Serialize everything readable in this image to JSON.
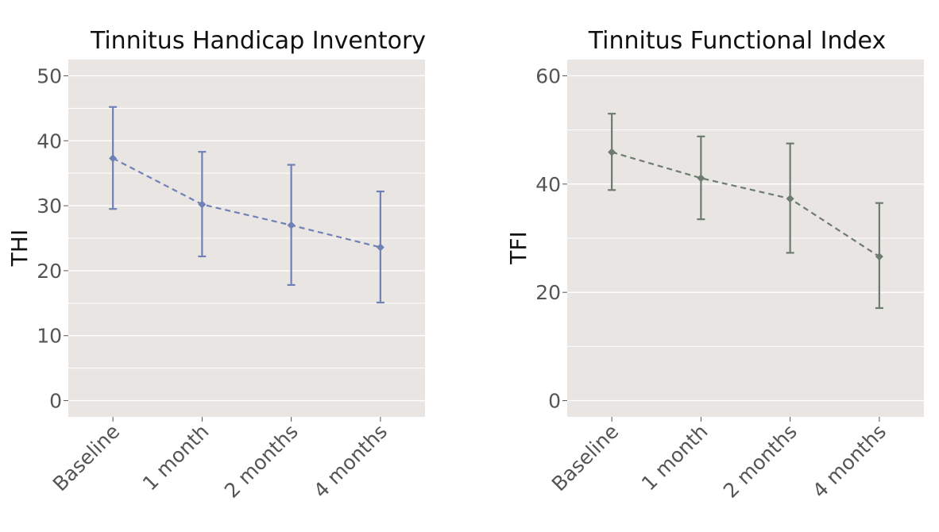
{
  "chart_data": [
    {
      "type": "line",
      "title": "Tinnitus Handicap Inventory",
      "xlabel": "",
      "ylabel": "THI",
      "categories": [
        "Baseline",
        "1 month",
        "2 months",
        "4 months"
      ],
      "values": [
        37.3,
        30.2,
        27.0,
        23.6
      ],
      "error_low": [
        29.5,
        22.2,
        17.8,
        15.1
      ],
      "error_high": [
        45.2,
        38.3,
        36.3,
        32.2
      ],
      "yticks": [
        0,
        10,
        20,
        30,
        40,
        50
      ],
      "ylim": [
        -2.5,
        52.5
      ],
      "line_style": "dashed",
      "marker": "diamond",
      "grid": true,
      "color": "#7082b5",
      "background": "#e8e5e3"
    },
    {
      "type": "line",
      "title": "Tinnitus Functional Index",
      "xlabel": "",
      "ylabel": "TFI",
      "categories": [
        "Baseline",
        "1 month",
        "2 months",
        "4 months"
      ],
      "values": [
        45.9,
        41.1,
        37.3,
        26.6
      ],
      "error_low": [
        38.9,
        33.5,
        27.3,
        17.1
      ],
      "error_high": [
        53.0,
        48.8,
        47.5,
        36.5
      ],
      "yticks": [
        0,
        20,
        40,
        60
      ],
      "ylim": [
        -3,
        63
      ],
      "line_style": "dashed",
      "marker": "diamond",
      "grid": true,
      "color": "#6e7b6f",
      "background": "#e8e5e3"
    }
  ]
}
